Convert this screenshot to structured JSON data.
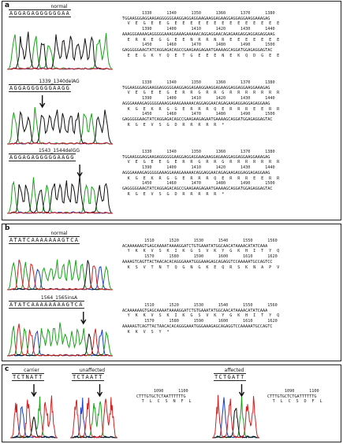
{
  "panels": {
    "a": {
      "label": "a",
      "traces": [
        {
          "title": "normal",
          "bases": "AGGAGAGGGGGGAA"
        },
        {
          "title": "1339_1340delAG",
          "bases": "AGGAGGGGGGAAGG"
        },
        {
          "title": "1543_1544delGG",
          "bases": "AGGAGAGGGGGAAGG"
        }
      ],
      "blocks": [
        {
          "lines": [
            {
              "kind": "num",
              "text": "        1330      1340      1350      1360      1370      1380"
            },
            {
              "kind": "dna",
              "text": "TGGAAGGGAGGAAGAGGGGGGAAGGAGGAGGAAGAAGGAGAAGGAGGAGGAAGGAAAGAG"
            },
            {
              "kind": "aa",
              "text": "  V  E  G  E  E  G  E  E  E  E  E  E  E  E  E  E  E  E  E  E"
            },
            {
              "kind": "num",
              "text": "        1390      1400      1410      1420      1430      1440"
            },
            {
              "kind": "dna",
              "text": "AAAGGGAAAAGAGGGGGAAAGGAAAGAAAAACAGGAGGAACAGAGAAGAGGAGGAGAGGAAG"
            },
            {
              "kind": "aa",
              "text": "  E  R  K  E  G  G  E  E  N  R  R  N  R  E  E  E  E  E  E  E"
            },
            {
              "kind": "num",
              "text": "        1450      1460      1470      1480      1490      1500"
            },
            {
              "kind": "dna",
              "text": "GAGGGGGAAGTATCAGGAGACAGCCGAAGAAGAGAATGAAAAGCAGGATGGAGAGGAGTAC"
            },
            {
              "kind": "aa",
              "text": "  E  E  G  K  Y  Q  E  T  G  E  E  E  N  E  K  Q  D  G  E  E"
            }
          ]
        },
        {
          "lines": [
            {
              "kind": "num",
              "text": "        1330      1340      1350      1360      1370      1380"
            },
            {
              "kind": "dna",
              "text": "TGGAAGGGAGGAAGGAGGGGGAAGGAGGAGAAGGAAGGAGAAGGAGGAGGAAGGAAAGAG"
            },
            {
              "kind": "aa",
              "text": "  V  E  G  E  E  G  E  R  R  G  R  R  G  R  R  R  R  R  R  R"
            },
            {
              "kind": "num",
              "text": "        1390      1400      1410      1420      1430      1440"
            },
            {
              "kind": "dna",
              "text": "AGGGAAAAGAGGGGGAAAGGAAAGAAAAACAGGAGGAACAGAGAAGAGGAGGAGAGGAAG"
            },
            {
              "kind": "aa",
              "text": "  K  G  E  K  R  G  G  E  R  R  R  Q  E  R  R  R  E  E  R  R"
            },
            {
              "kind": "num",
              "text": "        1450      1460      1470      1480      1490      1500"
            },
            {
              "kind": "dna",
              "text": "GAGGGGGAAGTATCAGGAGACAGCCGAAGAAGAGAATGAAAAGCAGGATGGAGAGGAGTAC"
            },
            {
              "kind": "aa",
              "text": "  R  G  E  V  S  G  D  R  R  R  R  R  *"
            }
          ]
        },
        {
          "lines": [
            {
              "kind": "num",
              "text": "        1330      1340      1350      1360      1370      1380"
            },
            {
              "kind": "dna",
              "text": "TGGAAGGGAGGAAGAGGGGGGAAGGAGGAGGAAGAAGGAGAAGGAGGAGGAAGGAAAGAG"
            },
            {
              "kind": "aa",
              "text": "  V  E  G  E  E  G  E  R  R  G  R  R  G  R  R  R  R  R  R  R"
            },
            {
              "kind": "num",
              "text": "        1390      1400      1410      1420      1430      1440"
            },
            {
              "kind": "dna",
              "text": "AGGGAAAAGAGGGGGAAAGGAAAGAAAAACAGGAGGAACAGAGAAGAGGAGGAGAGGAAG"
            },
            {
              "kind": "aa",
              "text": "  K  G  E  K  R  G  G  E  R  R  R  Q  E  R  R  R  E  E  R  R"
            },
            {
              "kind": "num",
              "text": "        1450      1460      1470      1480      1490      1500"
            },
            {
              "kind": "dna",
              "text": "GAGGGGGAAGTATCAGGAGACAGCCGAAGAAGAGAATGAAAAGCAGGATGGAGAGGAGTAC"
            },
            {
              "kind": "aa",
              "text": "  R  G  E  V  S  G  D  R  R  R  R  R  *"
            }
          ]
        }
      ]
    },
    "b": {
      "label": "b",
      "traces": [
        {
          "title": "normal",
          "bases": "ATATCAAAAAAAGTCA"
        },
        {
          "title": "1564_1565insA",
          "bases": "ATATCAAAAAAAAGTCA"
        }
      ],
      "blocks": [
        {
          "lines": [
            {
              "kind": "num",
              "text": "         1510      1520      1530      1540      1550      1560"
            },
            {
              "kind": "dna",
              "text": "ACAAAAAAGTGAGCAAAATAAAAGGATCTGTGAAATATGGCAACATAAAACATATCAAA"
            },
            {
              "kind": "aa",
              "text": "  Y  K  K  V  S  K  I  K  G  S  V  K  Y  G  K  H  I  T  Y  Q"
            },
            {
              "kind": "num",
              "text": "         1570      1580      1590      1600      1610      1620"
            },
            {
              "kind": "dna",
              "text": "AAAAGTCAGTTACTAACACACAGGGAAATGGGAAAGAGCAGAGGTCCAAAAATGCCAGTCC"
            },
            {
              "kind": "aa",
              "text": "  K  S  V  T  N  T  Q  G  N  G  K  E  Q  R  S  K  N  A  P  V"
            }
          ]
        },
        {
          "lines": [
            {
              "kind": "num",
              "text": "         1510      1520      1530      1540      1550      1560"
            },
            {
              "kind": "dna",
              "text": "ACAAAAAAGTGAGCAAAATAAAAGGATCTGTGAAATATGGCAACATAAAACATATCAAA"
            },
            {
              "kind": "aa",
              "text": "  Y  K  K  V  S  K  I  K  G  S  V  K  Y  G  K  H  I  T  Y  Q"
            },
            {
              "kind": "num",
              "text": "         1570      1580      1590      1600      1610      1620"
            },
            {
              "kind": "dna",
              "text": "AAAAAGTCAGTTACTAACACACAGGGAAATGGGAAAGAGCAGAGGTCCAAAAATGCCAGTC"
            },
            {
              "kind": "aa",
              "text": "  K  K  V  S  Y  *"
            }
          ]
        }
      ]
    },
    "c": {
      "label": "c",
      "traces": [
        {
          "title": "carrier",
          "bases": "TCTNATT"
        },
        {
          "title": "unaffected",
          "bases": "TCTAATT"
        },
        {
          "title": "affected",
          "bases": "TCTGATT"
        }
      ],
      "blocks": [
        {
          "lines": [
            {
              "kind": "num",
              "text": "       1090      1100"
            },
            {
              "kind": "dna",
              "text": "CTTTGTGCTCTAATTTTTTG"
            },
            {
              "kind": "aa",
              "text": "  T  L  C  S  N  F  L"
            }
          ]
        },
        {
          "lines": [
            {
              "kind": "num",
              "text": "       1090      1100"
            },
            {
              "kind": "dna",
              "text": "CTTTGTGCTCTGATTTTTTG"
            },
            {
              "kind": "aa",
              "text": "  T  L  C  S  D  F  L"
            }
          ]
        }
      ]
    }
  },
  "colors": {
    "A": "#1aa31a",
    "C": "#1a3cc8",
    "G": "#111111",
    "T": "#d42020",
    "arrow": "#111111"
  }
}
